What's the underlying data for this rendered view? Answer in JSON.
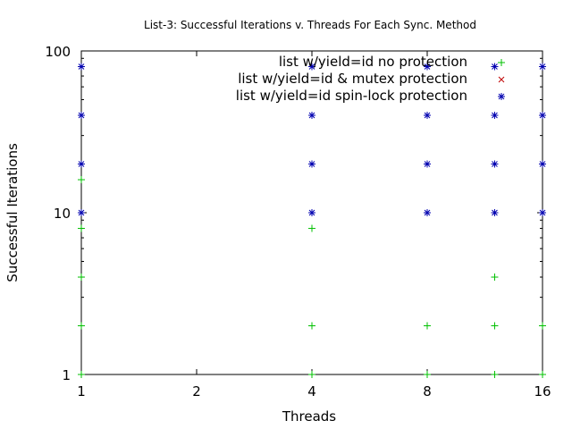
{
  "chart_data": {
    "type": "scatter",
    "title": "List-3: Successful Iterations v. Threads For Each Sync. Method",
    "xlabel": "Threads",
    "ylabel": "Successful Iterations",
    "x_scale": "log2",
    "y_scale": "log10",
    "xlim": [
      1,
      16
    ],
    "ylim": [
      1,
      100
    ],
    "xticks": [
      {
        "value": 1,
        "label": "1"
      },
      {
        "value": 2,
        "label": "2"
      },
      {
        "value": 4,
        "label": "4"
      },
      {
        "value": 8,
        "label": "8"
      },
      {
        "value": 16,
        "label": "16"
      }
    ],
    "yticks": [
      {
        "value": 1,
        "label": "1"
      },
      {
        "value": 10,
        "label": "10"
      },
      {
        "value": 100,
        "label": "100"
      }
    ],
    "grid": false,
    "legend_position": "top-right",
    "series": [
      {
        "name": "list w/yield=id no protection",
        "color": "#00c000",
        "marker": "plus",
        "points": [
          [
            1,
            1
          ],
          [
            1,
            2
          ],
          [
            1,
            4
          ],
          [
            1,
            8
          ],
          [
            1,
            16
          ],
          [
            4,
            1
          ],
          [
            4,
            2
          ],
          [
            4,
            8
          ],
          [
            8,
            1
          ],
          [
            8,
            2
          ],
          [
            12,
            1
          ],
          [
            12,
            2
          ],
          [
            12,
            4
          ],
          [
            16,
            1
          ],
          [
            16,
            2
          ]
        ]
      },
      {
        "name": "list w/yield=id & mutex protection",
        "color": "#c00000",
        "marker": "cross",
        "points": []
      },
      {
        "name": "list w/yield=id spin-lock protection",
        "color": "#0000b0",
        "marker": "star",
        "points": [
          [
            1,
            10
          ],
          [
            1,
            20
          ],
          [
            1,
            40
          ],
          [
            1,
            80
          ],
          [
            4,
            10
          ],
          [
            4,
            20
          ],
          [
            4,
            40
          ],
          [
            4,
            80
          ],
          [
            8,
            10
          ],
          [
            8,
            20
          ],
          [
            8,
            40
          ],
          [
            8,
            80
          ],
          [
            12,
            10
          ],
          [
            12,
            20
          ],
          [
            12,
            40
          ],
          [
            12,
            80
          ],
          [
            16,
            10
          ],
          [
            16,
            20
          ],
          [
            16,
            40
          ],
          [
            16,
            80
          ]
        ]
      }
    ]
  }
}
